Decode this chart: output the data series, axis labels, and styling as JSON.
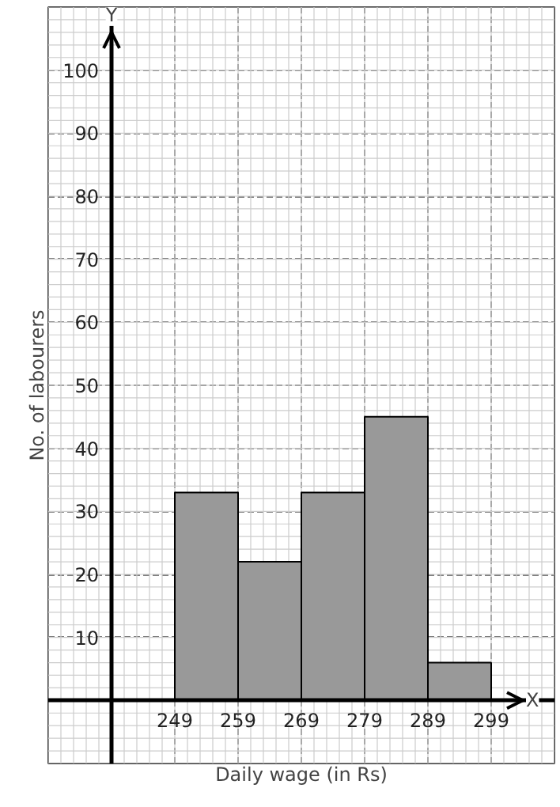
{
  "chart_data": {
    "type": "histogram",
    "xlabel": "Daily wage (in Rs)",
    "ylabel": "No. of labourers",
    "bins": [
      249,
      259,
      269,
      279,
      289,
      299
    ],
    "values": [
      33,
      22,
      33,
      45,
      6
    ],
    "color": "#999999",
    "xlim": [
      229,
      309
    ],
    "ylim": [
      -10,
      110
    ],
    "xticks": [
      249,
      259,
      269,
      279,
      289,
      299
    ],
    "yticks": [
      10,
      20,
      30,
      40,
      50,
      60,
      70,
      80,
      90,
      100
    ],
    "grid": true,
    "annotations": [
      "X",
      "Y"
    ]
  }
}
